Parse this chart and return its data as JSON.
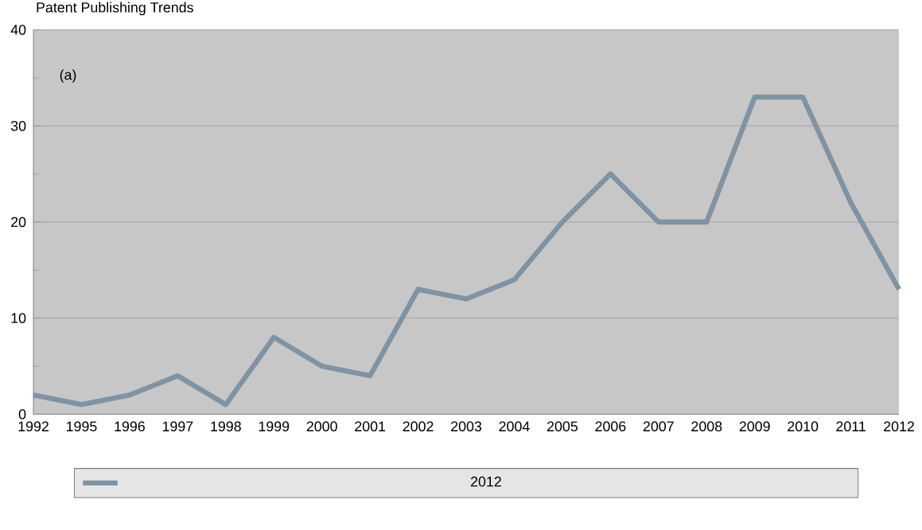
{
  "chart_data": {
    "type": "line",
    "title": "Patent Publishing Trends",
    "categories": [
      "1992",
      "1995",
      "1996",
      "1997",
      "1998",
      "1999",
      "2000",
      "2001",
      "2002",
      "2003",
      "2004",
      "2005",
      "2006",
      "2007",
      "2008",
      "2009",
      "2010",
      "2011",
      "2012"
    ],
    "series": [
      {
        "name": "2012",
        "color": "#7f93a3",
        "values": [
          2,
          1,
          2,
          4,
          1,
          8,
          5,
          4,
          13,
          12,
          14,
          20,
          25,
          20,
          20,
          33,
          33,
          22,
          13
        ]
      }
    ],
    "ylim": [
      0,
      40
    ],
    "yticks": [
      0,
      10,
      20,
      30,
      40
    ],
    "grid": "y",
    "legend": "bottom",
    "marker": "none",
    "line_style": "solid",
    "annotations": [
      "(a)"
    ]
  }
}
